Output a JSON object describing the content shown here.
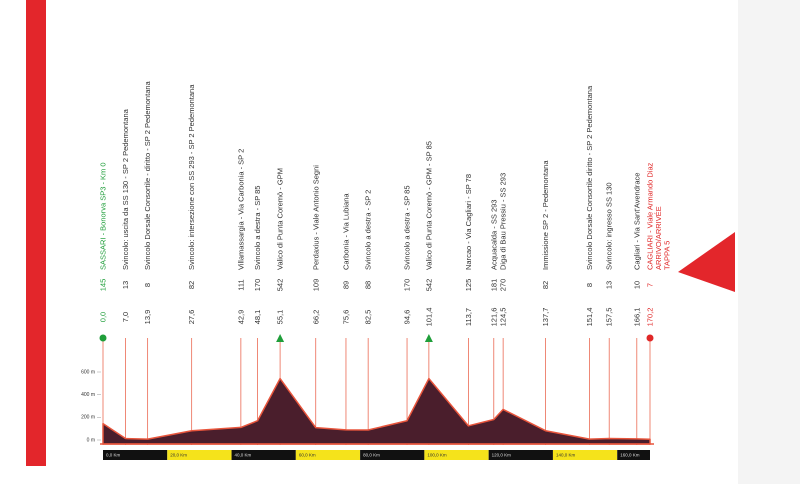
{
  "chart_data": {
    "type": "area",
    "locations": [
      "SASSARI - Bonorva SP3 - Km 0",
      "Svincolo: uscita da SS 130 - SP 2 Pedemontana",
      "Svincolo Dorsale Consortile - diritto - SP 2 Pedemontana",
      "Svincolo: intersezione con SS 293 - SP 2 Pedemontana",
      "Villamassargia - Via Carbonia - SP 2",
      "Svincolo a destra - SP 85",
      "Valico di Punta Coremò - GPM",
      "Perdaxius - Viale Antonio Segni",
      "Carbonia - Via Lubiana",
      "Svincolo a destra - SP 2",
      "Svincolo a destra - SP 85",
      "Valico di Punta Coremò - GPM - SP 85",
      "Narcao - Via Cagliari - SP 78",
      "Acquacalda - SS 293",
      "Diga di Bau Pressiu - SS 293",
      "Immissione SP 2 - Pedemontana",
      "Svincolo Dorsale Consortile diritto - SP 2 Pedemontana",
      "Svincolo: ingresso SS 130",
      "Cagliari - Via Sant'Avendrace",
      "CAGLIARI - Viale Armando Diaz"
    ],
    "finish_lines": [
      "ARRIVO/ARRIVÉE",
      "TAPPA 5"
    ],
    "x": [
      0,
      7,
      13.9,
      27.6,
      42.9,
      48.1,
      55.1,
      66.2,
      75.6,
      82.5,
      94.6,
      101.4,
      113.7,
      121.6,
      124.5,
      137.7,
      151.4,
      157.5,
      166.1,
      170.2
    ],
    "x_labels": [
      "0,0",
      "7,0",
      "13,9",
      "27,6",
      "42,9",
      "48,1",
      "55,1",
      "66,2",
      "75,6",
      "82,5",
      "94,6",
      "101,4",
      "113,7",
      "121,6",
      "124,5",
      "137,7",
      "151,4",
      "157,5",
      "166,1",
      "170,2"
    ],
    "series": [
      {
        "color": "#4a1e2c",
        "values": [
          145,
          13,
          8,
          82,
          111,
          170,
          542,
          109,
          89,
          88,
          170,
          542,
          125,
          181,
          270,
          82,
          8,
          13,
          10,
          7
        ]
      }
    ],
    "gpm": [
      6,
      11
    ],
    "start_color": "#1f9e3a",
    "finish_color": "#e02828",
    "line_color": "#e8553c",
    "xlim": [
      0,
      170.2
    ],
    "ylim": [
      0,
      900
    ],
    "yticks": [
      {
        "value": 0,
        "label": "0 m"
      },
      {
        "value": 200,
        "label": "200 m"
      },
      {
        "value": 400,
        "label": "400 m"
      },
      {
        "value": 600,
        "label": "600 m"
      }
    ],
    "xticks": [
      {
        "value": 0,
        "label": "0,0 Km"
      },
      {
        "value": 20,
        "label": "20,0 Km"
      },
      {
        "value": 40,
        "label": "40,0 Km"
      },
      {
        "value": 60,
        "label": "60,0 Km"
      },
      {
        "value": 80,
        "label": "80,0 Km"
      },
      {
        "value": 100,
        "label": "100,0 Km"
      },
      {
        "value": 120,
        "label": "120,0 Km"
      },
      {
        "value": 140,
        "label": "140,0 Km"
      },
      {
        "value": 160,
        "label": "160,0 Km"
      }
    ]
  }
}
